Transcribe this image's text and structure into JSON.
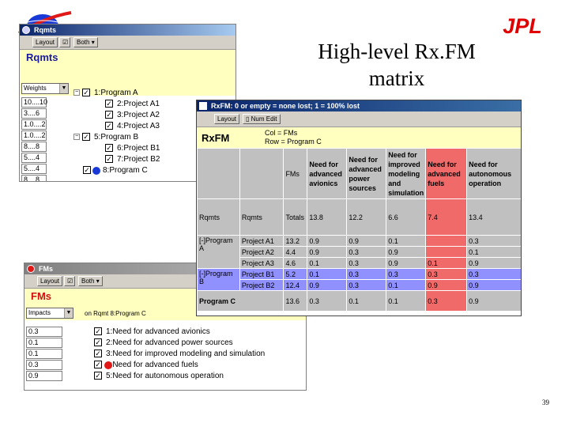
{
  "slide": {
    "title_line1": "High-level Rx.FM",
    "title_line2": "matrix",
    "logo_jpl": "JPL",
    "page_number": "39"
  },
  "colors": {
    "titlebar": "#0a246a",
    "yellow_header": "#ffffc0",
    "highlight": "#f06a6a",
    "selected": "#9090ff",
    "blue_dot": "#1a3ad8",
    "red_dot": "#e01818"
  },
  "rqmts": {
    "window_title": "Rqmts",
    "toolbar": {
      "layout": "Layout",
      "both": "Both"
    },
    "header": "Rqmts",
    "dropdown": "Weights",
    "values": [
      "10....10",
      "3....6",
      "1.0....2",
      "1.0....2",
      "8....8",
      "5....4",
      "5....4",
      "8....8"
    ],
    "tree": [
      {
        "label": "1:Program A",
        "level": 0,
        "expander": "−"
      },
      {
        "label": "2:Project A1",
        "level": 1
      },
      {
        "label": "3:Project A2",
        "level": 1
      },
      {
        "label": "4:Project A3",
        "level": 1
      },
      {
        "label": "5:Program B",
        "level": 0,
        "expander": "−"
      },
      {
        "label": "6:Project B1",
        "level": 1
      },
      {
        "label": "7:Project B2",
        "level": 1
      },
      {
        "label": "8:Program C",
        "level": 0
      }
    ]
  },
  "rxfm": {
    "window_title": "RxFM: 0 or empty = none lost; 1 = 100% lost",
    "toolbar": {
      "layout": "Layout",
      "num_edit": "Num Edit"
    },
    "header": "RxFM",
    "col_desc": "Col = FMs",
    "row_desc": "Row = Program C",
    "col_headers": [
      "FMs",
      "Need for advanced avionics",
      "Need for advanced power sources",
      "Need for improved modeling and simulation",
      "Need for advanced fuels",
      "Need for autonomous operation"
    ],
    "totals_row": {
      "c1": "Rqmts",
      "c2": "Rqmts",
      "c3": "Totals",
      "vals": [
        "13.8",
        "12.2",
        "6.6",
        "7.4",
        "13.4"
      ]
    },
    "groups": [
      {
        "label": "[-]Program A",
        "rows": [
          {
            "name": "Project A1",
            "total": "13.2",
            "vals": [
              "0.9",
              "0.9",
              "0.1",
              "",
              "0.3"
            ]
          },
          {
            "name": "Project A2",
            "total": "4.4",
            "vals": [
              "0.9",
              "0.3",
              "0.9",
              "",
              "0.1"
            ]
          },
          {
            "name": "Project A3",
            "total": "4.6",
            "vals": [
              "0.1",
              "0.3",
              "0.9",
              "0.1",
              "0.9"
            ]
          }
        ]
      },
      {
        "label": "[-]Program B",
        "rows": [
          {
            "name": "Project B1",
            "total": "5.2",
            "vals": [
              "0.1",
              "0.3",
              "0.3",
              "0.3",
              "0.3"
            ]
          },
          {
            "name": "Project B2",
            "total": "12.4",
            "vals": [
              "0.9",
              "0.3",
              "0.1",
              "0.9",
              "0.9"
            ]
          }
        ]
      }
    ],
    "program_c": {
      "label": "Program C",
      "total": "13.6",
      "vals": [
        "0.3",
        "0.1",
        "0.1",
        "0.3",
        "0.9"
      ]
    }
  },
  "fms": {
    "window_title": "FMs",
    "toolbar": {
      "layout": "Layout",
      "both": "Both"
    },
    "header": "FMs",
    "dropdown": "Impacts",
    "context": "on Rqmt 8:Program C",
    "values": [
      "0.3",
      "0.1",
      "0.1",
      "0.3",
      "0.9"
    ],
    "items": [
      "1:Need for advanced avionics",
      "2:Need for advanced power sources",
      "3:Need for improved modeling and simulation",
      "4:Need for advanced fuels",
      "5:Need for autonomous operation"
    ]
  }
}
